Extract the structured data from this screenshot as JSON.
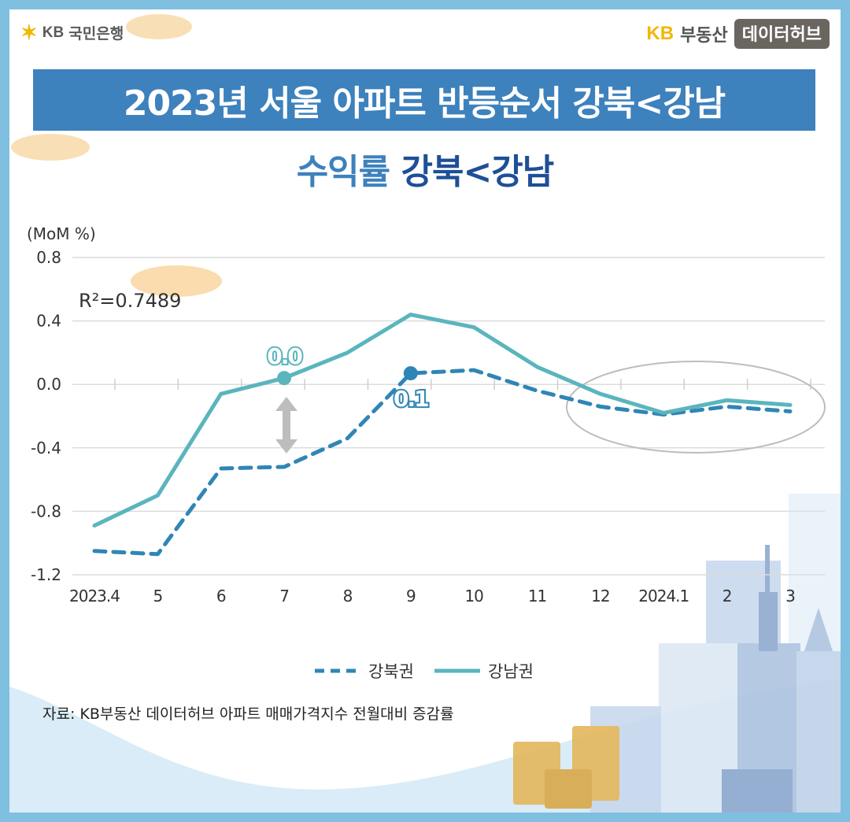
{
  "brand": {
    "left_mark": "KB",
    "left_name": "국민은행",
    "right_mark": "KB",
    "right_name": "부동산",
    "right_hub": "데이터허브"
  },
  "title": "2023년 서울 아파트 반등순서 강북<강남",
  "subtitle": {
    "part1": "수익률",
    "part2": "강북<강남"
  },
  "chart_data": {
    "type": "line",
    "ylabel": "(MoM %)",
    "ylim": [
      -1.2,
      0.8
    ],
    "yticks": [
      "0.8",
      "0.4",
      "0.0",
      "-0.4",
      "-0.8",
      "-1.2"
    ],
    "ytick_values": [
      0.8,
      0.4,
      0.0,
      -0.4,
      -0.8,
      -1.2
    ],
    "categories": [
      "2023.4",
      "5",
      "6",
      "7",
      "8",
      "9",
      "10",
      "11",
      "12",
      "2024.1",
      "2",
      "3"
    ],
    "annotation_r2": "R²=0.7489",
    "series": [
      {
        "name": "강북권",
        "style": "dashed",
        "color": "#2f86b6",
        "values": [
          -1.05,
          -1.07,
          -0.53,
          -0.52,
          -0.34,
          0.07,
          0.09,
          -0.04,
          -0.14,
          -0.19,
          -0.14,
          -0.17
        ]
      },
      {
        "name": "강남권",
        "style": "solid",
        "color": "#5ab5bd",
        "values": [
          -0.89,
          -0.7,
          -0.06,
          0.04,
          0.2,
          0.44,
          0.36,
          0.11,
          -0.06,
          -0.18,
          -0.1,
          -0.13
        ]
      }
    ],
    "point_labels": [
      {
        "text": "0.0",
        "series": 1,
        "index": 3
      },
      {
        "text": "0.1",
        "series": 0,
        "index": 5
      }
    ],
    "grid": true,
    "legend": "bottom-center"
  },
  "source": "자료: KB부동산 데이터허브 아파트 매매가격지수 전월대비 증감률",
  "colors": {
    "title_bg": "#3d81bd",
    "accent_dark": "#1e4f97",
    "frame": "#7fbfe0"
  }
}
